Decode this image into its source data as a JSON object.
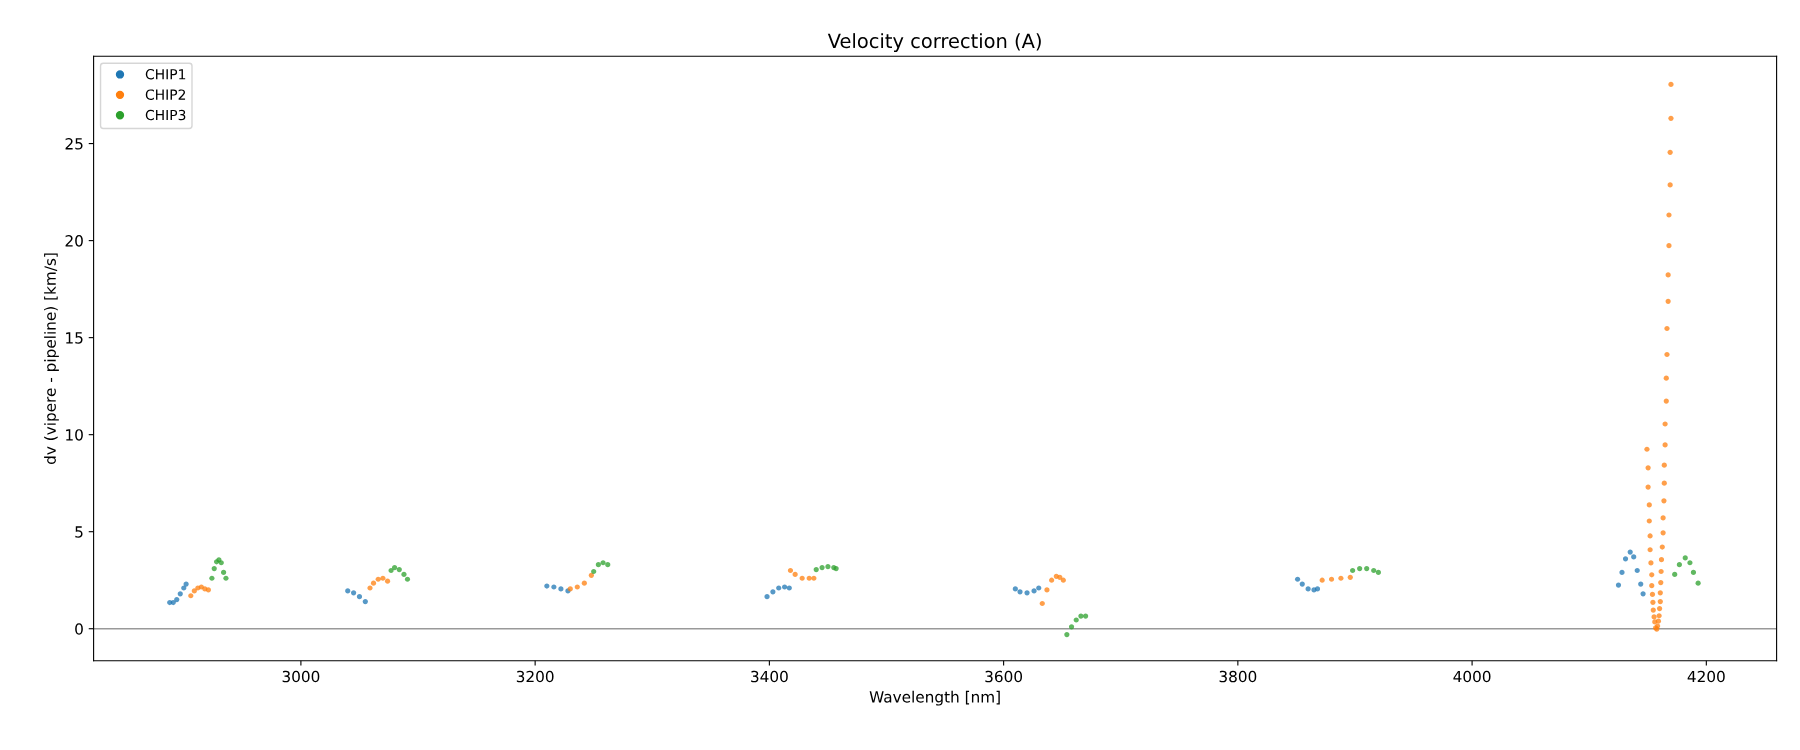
{
  "chart_data": {
    "type": "scatter",
    "title": "Velocity correction (A)",
    "xlabel": "Wavelength [nm]",
    "ylabel": "dv (vipere - pipeline) [km/s]",
    "xlim": [
      2823,
      4260
    ],
    "xticks": [
      3000,
      3200,
      3400,
      3600,
      3800,
      4000,
      4200
    ],
    "ylim": [
      -1.65,
      29.5
    ],
    "yticks": [
      0,
      5,
      10,
      15,
      20,
      25
    ],
    "grid": false,
    "legend": "top left",
    "marker": "circle",
    "ref_lines": [
      {
        "axis": "y",
        "value": 0,
        "color": "#999999"
      }
    ],
    "series": [
      {
        "name": "CHIP1",
        "color": "#1f77b4",
        "x": [
          2888,
          2891,
          2894,
          2897,
          2900,
          2902,
          3040,
          3045,
          3050,
          3055,
          3210,
          3216,
          3222,
          3228,
          3398,
          3403,
          3408,
          3413,
          3417,
          3610,
          3614,
          3620,
          3626,
          3630,
          3851,
          3855,
          3860,
          3865,
          3868,
          4125,
          4128,
          4131,
          4135,
          4138,
          4141,
          4144,
          4146
        ],
        "values": [
          1.35,
          1.35,
          1.5,
          1.8,
          2.1,
          2.3,
          1.95,
          1.85,
          1.65,
          1.4,
          2.2,
          2.15,
          2.05,
          1.95,
          1.65,
          1.9,
          2.1,
          2.15,
          2.1,
          2.05,
          1.9,
          1.85,
          1.95,
          2.1,
          2.55,
          2.3,
          2.05,
          2.0,
          2.05,
          2.25,
          2.9,
          3.6,
          3.95,
          3.7,
          3.0,
          2.3,
          1.8
        ]
      },
      {
        "name": "CHIP2",
        "color": "#ff7f0e",
        "x": [
          2906,
          2909,
          2912,
          2915,
          2918,
          2921,
          3059,
          3062,
          3066,
          3070,
          3074,
          3230,
          3236,
          3242,
          3248,
          3418,
          3422,
          3428,
          3434,
          3438,
          3633,
          3637,
          3641,
          3645,
          3648,
          3651,
          3872,
          3880,
          3888,
          3896,
          4149.3,
          4150.3,
          4150.3,
          4151.3,
          4151.3,
          4152,
          4152,
          4152.7,
          4153.4,
          4153.4,
          4154,
          4154.4,
          4154.7,
          4155.4,
          4156,
          4156.7,
          4169.8,
          4169.8,
          4169.1,
          4169.1,
          4168.1,
          4168.1,
          4167.4,
          4167.4,
          4166.4,
          4166.4,
          4165.8,
          4165.8,
          4164.8,
          4164.8,
          4164.1,
          4164.1,
          4163.8,
          4163.1,
          4163.1,
          4162.4,
          4161.7,
          4161.4,
          4161.1,
          4160.7,
          4160.7,
          4160.1,
          4159.7,
          4159.1,
          4158.4,
          4157.7
        ],
        "values": [
          1.7,
          1.95,
          2.1,
          2.15,
          2.05,
          2.0,
          2.1,
          2.35,
          2.55,
          2.6,
          2.45,
          2.05,
          2.15,
          2.35,
          2.75,
          3.0,
          2.8,
          2.6,
          2.6,
          2.6,
          1.3,
          2.0,
          2.5,
          2.7,
          2.65,
          2.5,
          2.5,
          2.55,
          2.6,
          2.65,
          9.25,
          8.29,
          7.3,
          6.38,
          5.55,
          4.78,
          4.07,
          3.39,
          2.78,
          2.22,
          1.77,
          1.36,
          0.96,
          0.61,
          0.35,
          0.04,
          28.05,
          26.3,
          24.55,
          22.87,
          21.32,
          19.74,
          18.23,
          16.87,
          15.47,
          14.13,
          12.91,
          11.73,
          10.55,
          9.47,
          8.43,
          7.5,
          6.59,
          5.71,
          4.94,
          4.21,
          3.56,
          2.95,
          2.38,
          1.85,
          1.4,
          1.04,
          0.67,
          0.39,
          0.14,
          -0.02
        ]
      },
      {
        "name": "CHIP3",
        "color": "#2ca02c",
        "x": [
          2924,
          2926,
          2928,
          2930,
          2932,
          2934,
          2936,
          3077,
          3080,
          3084,
          3088,
          3091,
          3250,
          3254,
          3258,
          3262,
          3440,
          3445,
          3450,
          3455,
          3457,
          3654,
          3658,
          3662,
          3666,
          3670,
          3898,
          3904,
          3910,
          3916,
          3920,
          4173,
          4177,
          4182,
          4186,
          4189,
          4193
        ],
        "values": [
          2.6,
          3.1,
          3.45,
          3.55,
          3.4,
          2.9,
          2.6,
          3.0,
          3.15,
          3.05,
          2.8,
          2.55,
          2.95,
          3.3,
          3.4,
          3.3,
          3.05,
          3.15,
          3.2,
          3.15,
          3.1,
          -0.3,
          0.1,
          0.45,
          0.65,
          0.65,
          3.0,
          3.1,
          3.1,
          3.0,
          2.9,
          2.8,
          3.3,
          3.65,
          3.4,
          2.9,
          2.35
        ]
      }
    ]
  }
}
